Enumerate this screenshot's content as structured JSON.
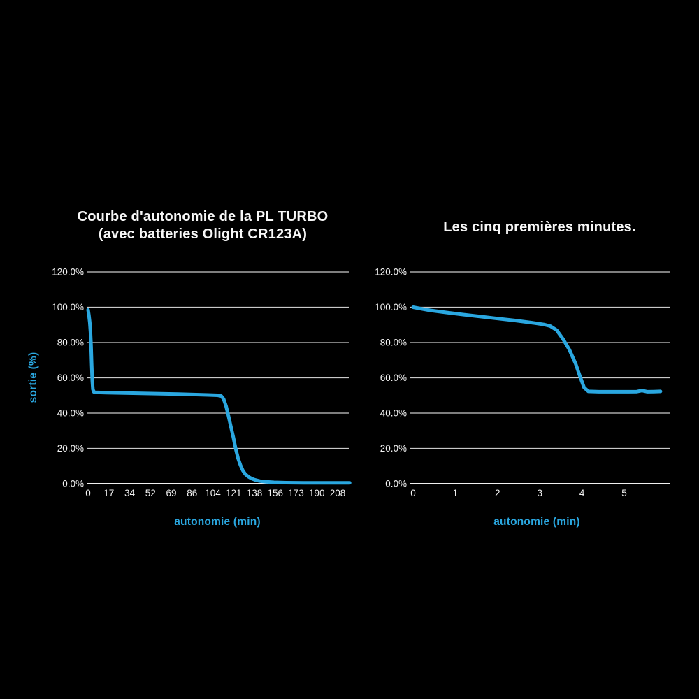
{
  "colors": {
    "background": "#000000",
    "accent": "#2aa7e0",
    "text": "#f2f2f2",
    "grid": "#c9c9c9",
    "axis": "#efefef"
  },
  "chart_data": [
    {
      "type": "line",
      "title": "Courbe d'autonomie de la PL TURBO (avec batteries Olight CR123A)",
      "title_lines": [
        "Courbe d'autonomie de la PL TURBO",
        "(avec batteries Olight CR123A)"
      ],
      "xlabel": "autonomie (min)",
      "ylabel": "sortie (%)",
      "xlim": [
        0,
        218
      ],
      "ylim": [
        0,
        120
      ],
      "xticks": [
        "0",
        "17",
        "34",
        "52",
        "69",
        "86",
        "104",
        "121",
        "138",
        "156",
        "173",
        "190",
        "208"
      ],
      "yticks": [
        "120.0%",
        "100.0%",
        "80.0%",
        "60.0%",
        "40.0%",
        "20.0%",
        "0.0%"
      ],
      "grid": true,
      "legend": false,
      "line_color": "#2aa7e0",
      "series": [
        {
          "name": "sortie (%)",
          "points": [
            [
              0,
              98.5
            ],
            [
              0.7,
              95.5
            ],
            [
              1.4,
              91.5
            ],
            [
              2,
              86
            ],
            [
              2.5,
              78
            ],
            [
              3,
              68
            ],
            [
              3.5,
              58.5
            ],
            [
              4,
              53.5
            ],
            [
              4.8,
              52
            ],
            [
              6,
              51.8
            ],
            [
              15,
              51.6
            ],
            [
              30,
              51.4
            ],
            [
              45,
              51.2
            ],
            [
              60,
              51.0
            ],
            [
              75,
              50.8
            ],
            [
              90,
              50.5
            ],
            [
              100,
              50.3
            ],
            [
              108,
              50.1
            ],
            [
              111,
              49.7
            ],
            [
              113,
              48
            ],
            [
              115,
              44
            ],
            [
              117,
              38.5
            ],
            [
              119,
              32.5
            ],
            [
              121,
              26.5
            ],
            [
              123,
              20
            ],
            [
              125,
              14.5
            ],
            [
              127,
              10.5
            ],
            [
              129,
              7.5
            ],
            [
              131,
              5.5
            ],
            [
              133.5,
              4
            ],
            [
              136,
              3
            ],
            [
              139,
              2.2
            ],
            [
              143,
              1.5
            ],
            [
              148,
              1.1
            ],
            [
              155,
              0.8
            ],
            [
              165,
              0.6
            ],
            [
              180,
              0.5
            ],
            [
              200,
              0.5
            ],
            [
              218,
              0.5
            ]
          ]
        }
      ]
    },
    {
      "type": "line",
      "title": "Les cinq premières minutes.",
      "title_lines": [
        "Les cinq premières minutes."
      ],
      "xlabel": "autonomie (min)",
      "ylabel": "",
      "xlim": [
        0,
        5.9
      ],
      "ylim": [
        0,
        120
      ],
      "xticks": [
        "0",
        "1",
        "2",
        "3",
        "4",
        "5"
      ],
      "yticks": [
        "120.0%",
        "100.0%",
        "80.0%",
        "60.0%",
        "40.0%",
        "20.0%",
        "0.0%"
      ],
      "grid": true,
      "legend": false,
      "line_color": "#2aa7e0",
      "series": [
        {
          "name": "sortie (%)",
          "points": [
            [
              0,
              100
            ],
            [
              0.4,
              98.2
            ],
            [
              0.8,
              97
            ],
            [
              1.2,
              95.8
            ],
            [
              1.6,
              94.7
            ],
            [
              2,
              93.6
            ],
            [
              2.4,
              92.5
            ],
            [
              2.8,
              91.3
            ],
            [
              3.1,
              90.2
            ],
            [
              3.25,
              89.3
            ],
            [
              3.4,
              87
            ],
            [
              3.55,
              82
            ],
            [
              3.7,
              76
            ],
            [
              3.85,
              68
            ],
            [
              3.95,
              61
            ],
            [
              4.05,
              54.5
            ],
            [
              4.15,
              52.3
            ],
            [
              4.4,
              52.1
            ],
            [
              4.8,
              52.1
            ],
            [
              5.1,
              52.1
            ],
            [
              5.3,
              52.2
            ],
            [
              5.42,
              52.8
            ],
            [
              5.55,
              52.1
            ],
            [
              5.7,
              52.2
            ],
            [
              5.86,
              52.3
            ]
          ]
        }
      ]
    }
  ]
}
